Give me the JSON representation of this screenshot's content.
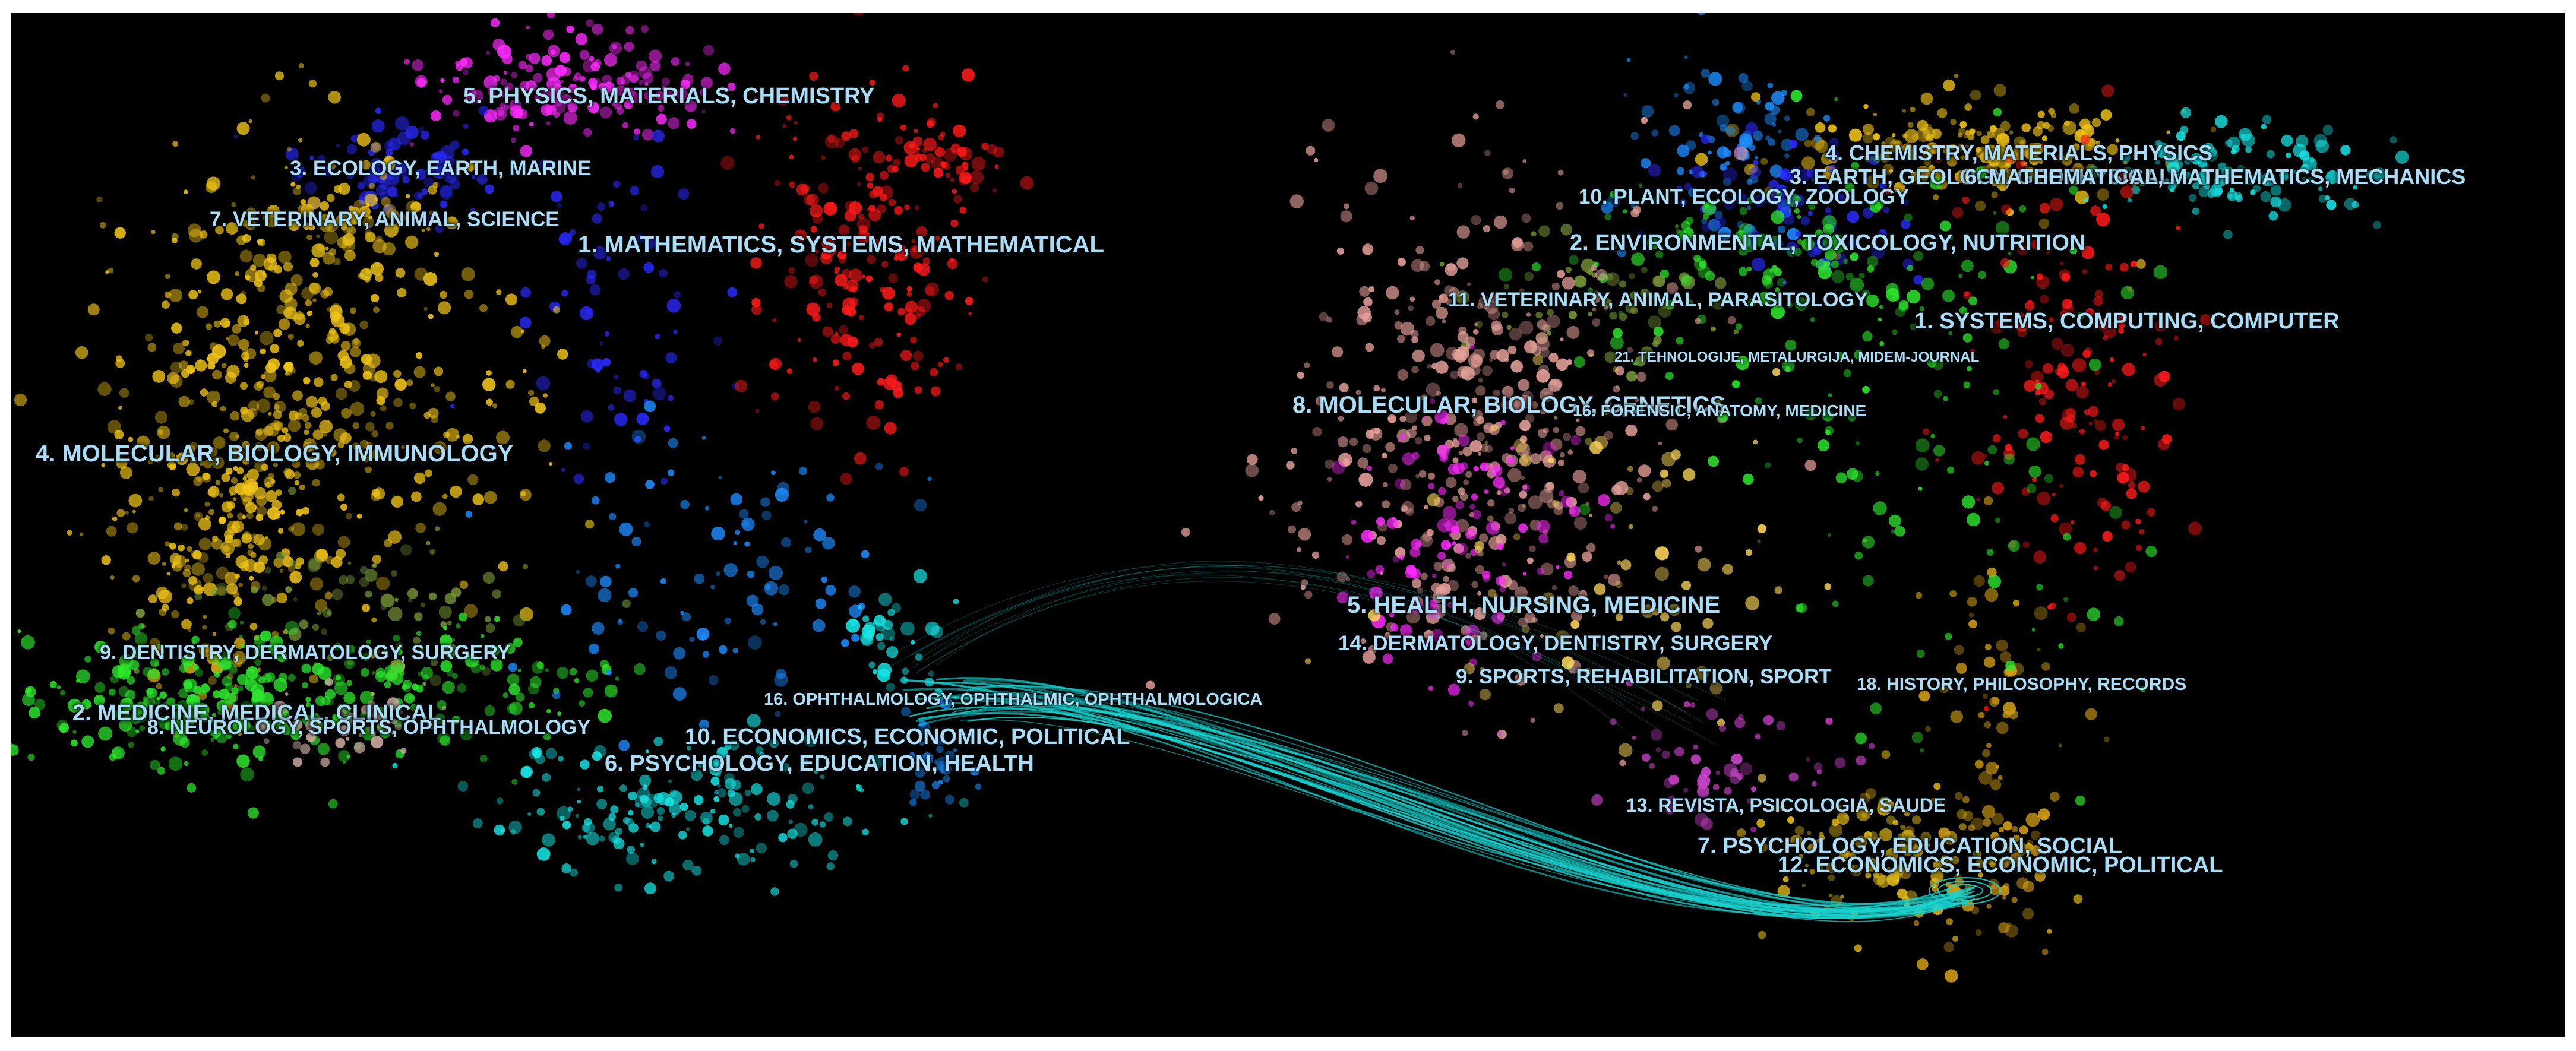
{
  "overlay": {
    "title": "",
    "description": "",
    "colors": {
      "background": "#000000",
      "frame": "#ffffff",
      "label": "#a9dcf6",
      "link": "#19d3d0"
    },
    "left_map": {
      "clusters": [
        {
          "label": "5. PHYSICS, MATERIALS, CHEMISTRY",
          "color": "#ff2bff"
        },
        {
          "label": "3. ECOLOGY, EARTH, MARINE",
          "color": "#2a2aff"
        },
        {
          "label": "7. VETERINARY, ANIMAL, SCIENCE",
          "color": "#e8c01a"
        },
        {
          "label": "1. MATHEMATICS, SYSTEMS, MATHEMATICAL",
          "color": "#ff1a1a"
        },
        {
          "label": "4. MOLECULAR, BIOLOGY, IMMUNOLOGY",
          "color": "#f0c419"
        },
        {
          "label": "9. DENTISTRY, DERMATOLOGY, SURGERY",
          "color": "#7b9a3a"
        },
        {
          "label": "2. MEDICINE, MEDICAL, CLINICAL",
          "color": "#2ee82e"
        },
        {
          "label": "8. NEUROLOGY, SPORTS, OPHTHALMOLOGY",
          "color": "#caa8a0"
        },
        {
          "label": "16. OPHTHALMOLOGY, OPHTHALMIC, OPHTHALMOLOGICA",
          "color": "#1e8cff"
        },
        {
          "label": "10. ECONOMICS, ECONOMIC, POLITICAL",
          "color": "#1e8cff"
        },
        {
          "label": "6. PSYCHOLOGY, EDUCATION, HEALTH",
          "color": "#19e6e6"
        }
      ]
    },
    "right_map": {
      "clusters": [
        {
          "label": "4. CHEMISTRY, MATERIALS, PHYSICS",
          "color": "#f0c419"
        },
        {
          "label": "3. EARTH, GEOLOGY, GEOPHYSICAL",
          "color": "#1e8cff"
        },
        {
          "label": "6. MATHEMATICAL, MATHEMATICS, MECHANICS",
          "color": "#19e6e6"
        },
        {
          "label": "10. PLANT, ECOLOGY, ZOOLOGY",
          "color": "#2a2aff"
        },
        {
          "label": "2. ENVIRONMENTAL, TOXICOLOGY, NUTRITION",
          "color": "#2ee82e"
        },
        {
          "label": "11. VETERINARY, ANIMAL, PARASITOLOGY",
          "color": "#7b9a3a"
        },
        {
          "label": "1. SYSTEMS, COMPUTING, COMPUTER",
          "color": "#ff1a1a"
        },
        {
          "label": "21. TEHNOLOGIJE, METALURGIJA, MIDEM-JOURNAL",
          "color": "#888888"
        },
        {
          "label": "8. MOLECULAR, BIOLOGY, GENETICS",
          "color": "#e6a09a"
        },
        {
          "label": "16. FORENSIC, ANATOMY, MEDICINE",
          "color": "#aaaaaa"
        },
        {
          "label": "5. HEALTH, NURSING, MEDICINE",
          "color": "#ff2bff"
        },
        {
          "label": "14. DERMATOLOGY, DENTISTRY, SURGERY",
          "color": "#ffd95a"
        },
        {
          "label": "9. SPORTS, REHABILITATION, SPORT",
          "color": "#ffd95a"
        },
        {
          "label": "18. HISTORY, PHILOSOPHY, RECORDS",
          "color": "#d4a017"
        },
        {
          "label": "13. REVISTA, PSICOLOGIA, SAUDE",
          "color": "#cc44cc"
        },
        {
          "label": "7. PSYCHOLOGY, EDUCATION, SOCIAL",
          "color": "#e8c01a"
        },
        {
          "label": "12. ECONOMICS, ECONOMIC, POLITICAL",
          "color": "#d4a017"
        }
      ]
    }
  }
}
